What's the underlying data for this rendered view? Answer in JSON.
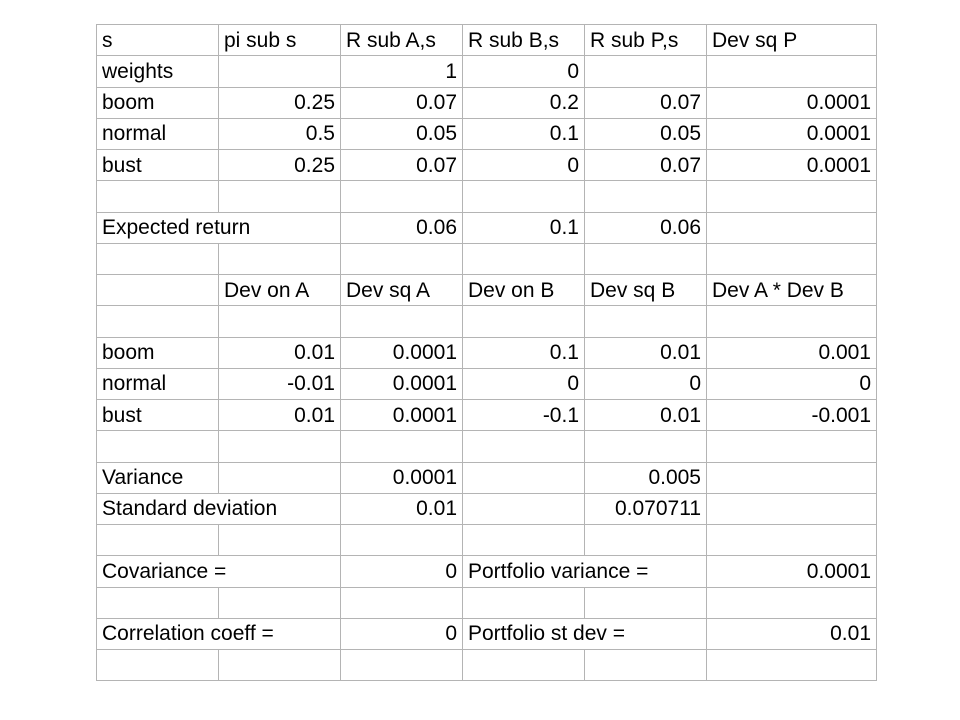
{
  "table": {
    "rows": [
      [
        {
          "v": "s",
          "a": "l"
        },
        {
          "v": "pi sub s",
          "a": "l"
        },
        {
          "v": "R sub A,s",
          "a": "l"
        },
        {
          "v": "R sub B,s",
          "a": "l"
        },
        {
          "v": "R sub P,s",
          "a": "l"
        },
        {
          "v": "Dev sq P",
          "a": "l"
        }
      ],
      [
        {
          "v": "weights",
          "a": "l"
        },
        {
          "v": "",
          "a": "l"
        },
        {
          "v": "1",
          "a": "r"
        },
        {
          "v": "0",
          "a": "r"
        },
        {
          "v": "",
          "a": "l"
        },
        {
          "v": "",
          "a": "l"
        }
      ],
      [
        {
          "v": "boom",
          "a": "l"
        },
        {
          "v": "0.25",
          "a": "r"
        },
        {
          "v": "0.07",
          "a": "r"
        },
        {
          "v": "0.2",
          "a": "r"
        },
        {
          "v": "0.07",
          "a": "r"
        },
        {
          "v": "0.0001",
          "a": "r"
        }
      ],
      [
        {
          "v": "normal",
          "a": "l"
        },
        {
          "v": "0.5",
          "a": "r"
        },
        {
          "v": "0.05",
          "a": "r"
        },
        {
          "v": "0.1",
          "a": "r"
        },
        {
          "v": "0.05",
          "a": "r"
        },
        {
          "v": "0.0001",
          "a": "r"
        }
      ],
      [
        {
          "v": "bust",
          "a": "l"
        },
        {
          "v": "0.25",
          "a": "r"
        },
        {
          "v": "0.07",
          "a": "r"
        },
        {
          "v": "0",
          "a": "r"
        },
        {
          "v": "0.07",
          "a": "r"
        },
        {
          "v": "0.0001",
          "a": "r"
        }
      ],
      [
        {
          "v": "",
          "a": "l"
        },
        {
          "v": "",
          "a": "l"
        },
        {
          "v": "",
          "a": "l"
        },
        {
          "v": "",
          "a": "l"
        },
        {
          "v": "",
          "a": "l"
        },
        {
          "v": "",
          "a": "l"
        }
      ],
      [
        {
          "v": "Expected return",
          "a": "l",
          "span": 2
        },
        {
          "v": "0.06",
          "a": "r"
        },
        {
          "v": "0.1",
          "a": "r"
        },
        {
          "v": "0.06",
          "a": "r"
        },
        {
          "v": "",
          "a": "l"
        }
      ],
      [
        {
          "v": "",
          "a": "l"
        },
        {
          "v": "",
          "a": "l"
        },
        {
          "v": "",
          "a": "l"
        },
        {
          "v": "",
          "a": "l"
        },
        {
          "v": "",
          "a": "l"
        },
        {
          "v": "",
          "a": "l"
        }
      ],
      [
        {
          "v": "",
          "a": "l"
        },
        {
          "v": "Dev on A",
          "a": "l"
        },
        {
          "v": "Dev sq A",
          "a": "l"
        },
        {
          "v": "Dev on B",
          "a": "l"
        },
        {
          "v": "Dev sq B",
          "a": "l"
        },
        {
          "v": "Dev A  * Dev B",
          "a": "l"
        }
      ],
      [
        {
          "v": "",
          "a": "l"
        },
        {
          "v": "",
          "a": "l"
        },
        {
          "v": "",
          "a": "l"
        },
        {
          "v": "",
          "a": "l"
        },
        {
          "v": "",
          "a": "l"
        },
        {
          "v": "",
          "a": "l"
        }
      ],
      [
        {
          "v": "boom",
          "a": "l"
        },
        {
          "v": "0.01",
          "a": "r"
        },
        {
          "v": "0.0001",
          "a": "r"
        },
        {
          "v": "0.1",
          "a": "r"
        },
        {
          "v": "0.01",
          "a": "r"
        },
        {
          "v": "0.001",
          "a": "r"
        }
      ],
      [
        {
          "v": "normal",
          "a": "l"
        },
        {
          "v": "-0.01",
          "a": "r"
        },
        {
          "v": "0.0001",
          "a": "r"
        },
        {
          "v": "0",
          "a": "r"
        },
        {
          "v": "0",
          "a": "r"
        },
        {
          "v": "0",
          "a": "r"
        }
      ],
      [
        {
          "v": "bust",
          "a": "l"
        },
        {
          "v": "0.01",
          "a": "r"
        },
        {
          "v": "0.0001",
          "a": "r"
        },
        {
          "v": "-0.1",
          "a": "r"
        },
        {
          "v": "0.01",
          "a": "r"
        },
        {
          "v": "-0.001",
          "a": "r"
        }
      ],
      [
        {
          "v": "",
          "a": "l"
        },
        {
          "v": "",
          "a": "l"
        },
        {
          "v": "",
          "a": "l"
        },
        {
          "v": "",
          "a": "l"
        },
        {
          "v": "",
          "a": "l"
        },
        {
          "v": "",
          "a": "l"
        }
      ],
      [
        {
          "v": "Variance",
          "a": "l"
        },
        {
          "v": "",
          "a": "l"
        },
        {
          "v": "0.0001",
          "a": "r"
        },
        {
          "v": "",
          "a": "l"
        },
        {
          "v": "0.005",
          "a": "r"
        },
        {
          "v": "",
          "a": "l"
        }
      ],
      [
        {
          "v": "Standard deviation",
          "a": "l",
          "span": 2
        },
        {
          "v": "0.01",
          "a": "r"
        },
        {
          "v": "",
          "a": "l"
        },
        {
          "v": "0.070711",
          "a": "r"
        },
        {
          "v": "",
          "a": "l"
        }
      ],
      [
        {
          "v": "",
          "a": "l"
        },
        {
          "v": "",
          "a": "l"
        },
        {
          "v": "",
          "a": "l"
        },
        {
          "v": "",
          "a": "l"
        },
        {
          "v": "",
          "a": "l"
        },
        {
          "v": "",
          "a": "l"
        }
      ],
      [
        {
          "v": "Covariance =",
          "a": "l",
          "span": 2
        },
        {
          "v": "0",
          "a": "r"
        },
        {
          "v": "Portfolio variance =",
          "a": "l",
          "span": 2
        },
        {
          "v": "0.0001",
          "a": "r"
        }
      ],
      [
        {
          "v": "",
          "a": "l"
        },
        {
          "v": "",
          "a": "l"
        },
        {
          "v": "",
          "a": "l"
        },
        {
          "v": "",
          "a": "l"
        },
        {
          "v": "",
          "a": "l"
        },
        {
          "v": "",
          "a": "l"
        }
      ],
      [
        {
          "v": "Correlation coeff =",
          "a": "l",
          "span": 2
        },
        {
          "v": "0",
          "a": "r"
        },
        {
          "v": "Portfolio st dev =",
          "a": "l",
          "span": 2
        },
        {
          "v": "0.01",
          "a": "r"
        }
      ],
      [
        {
          "v": "",
          "a": "l"
        },
        {
          "v": "",
          "a": "l"
        },
        {
          "v": "",
          "a": "l"
        },
        {
          "v": "",
          "a": "l"
        },
        {
          "v": "",
          "a": "l"
        },
        {
          "v": "",
          "a": "l"
        }
      ]
    ]
  }
}
